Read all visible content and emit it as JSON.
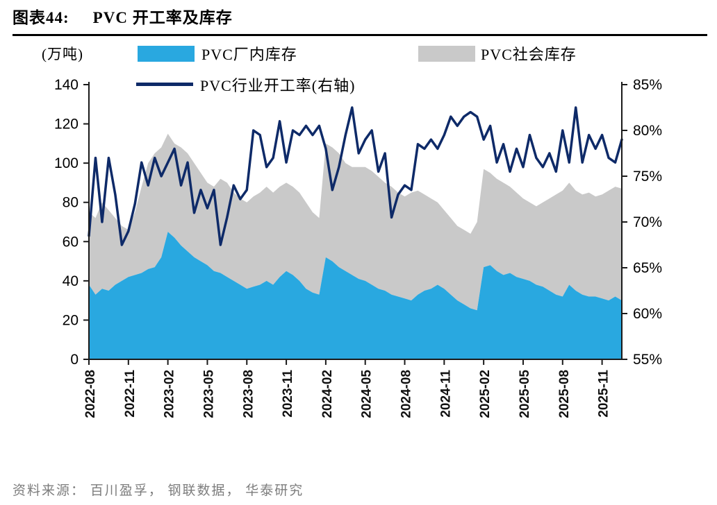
{
  "header": {
    "figure_label": "图表44:",
    "title": "PVC 开工率及库存"
  },
  "legend": {
    "unit": "(万吨)",
    "items": [
      {
        "label": "PVC厂内库存",
        "color": "#29A8E0",
        "type": "area"
      },
      {
        "label": "PVC社会库存",
        "color": "#C9C9C9",
        "type": "area"
      },
      {
        "label": "PVC行业开工率(右轴)",
        "color": "#0E2A68",
        "type": "line"
      }
    ]
  },
  "source": "资料来源： 百川盈孚， 钢联数据， 华泰研究",
  "chart_data": {
    "type": "area+line",
    "title": "PVC 开工率及库存",
    "stacking": "PVC厂内库存 and PVC社会库存 are stacked areas on left axis; operating rate line uses right axis",
    "left_axis": {
      "unit": "万吨",
      "min": 0,
      "max": 140,
      "ticks": [
        0,
        20,
        40,
        60,
        80,
        100,
        120,
        140
      ]
    },
    "right_axis": {
      "min": 55,
      "max": 85,
      "tick_labels": [
        "55%",
        "60%",
        "65%",
        "70%",
        "75%",
        "80%",
        "85%"
      ]
    },
    "x_tick_labels": [
      "2022-08",
      "2022-11",
      "2023-02",
      "2023-05",
      "2023-08",
      "2023-11",
      "2024-02",
      "2024-05",
      "2024-08",
      "2024-11",
      "2025-02",
      "2025-05",
      "2025-08",
      "2025-11"
    ],
    "x_tick_indices": [
      0,
      6,
      12,
      18,
      24,
      30,
      36,
      42,
      48,
      54,
      60,
      66,
      72,
      78
    ],
    "x_note": "82 semimonthly points from 2022-08 to 2025-12",
    "series": [
      {
        "name": "PVC厂内库存",
        "type": "area",
        "axis": "left",
        "color": "#29A8E0",
        "values": [
          38,
          33,
          36,
          35,
          38,
          40,
          42,
          43,
          44,
          46,
          47,
          52,
          65,
          62,
          58,
          55,
          52,
          50,
          48,
          45,
          44,
          42,
          40,
          38,
          36,
          37,
          38,
          40,
          38,
          42,
          45,
          43,
          40,
          36,
          34,
          33,
          52,
          50,
          47,
          45,
          43,
          41,
          40,
          38,
          36,
          35,
          33,
          32,
          31,
          30,
          33,
          35,
          36,
          38,
          36,
          33,
          30,
          28,
          26,
          25,
          47,
          48,
          45,
          43,
          44,
          42,
          41,
          40,
          38,
          37,
          35,
          33,
          32,
          38,
          35,
          33,
          32,
          32,
          31,
          30,
          32,
          30
        ]
      },
      {
        "name": "PVC社会库存",
        "type": "area-stacked",
        "axis": "left",
        "color": "#C9C9C9",
        "values": [
          37,
          39,
          44,
          41,
          34,
          28,
          24,
          32,
          44,
          54,
          58,
          56,
          50,
          48,
          50,
          50,
          48,
          45,
          42,
          43,
          48,
          48,
          45,
          44,
          44,
          46,
          47,
          48,
          47,
          46,
          45,
          45,
          45,
          44,
          41,
          39,
          58,
          58,
          58,
          55,
          55,
          57,
          58,
          58,
          57,
          55,
          55,
          53,
          52,
          55,
          53,
          49,
          46,
          42,
          40,
          39,
          38,
          38,
          38,
          45,
          50,
          47,
          47,
          47,
          44,
          43,
          41,
          40,
          40,
          43,
          47,
          51,
          54,
          52,
          51,
          51,
          53,
          51,
          53,
          56,
          56,
          57
        ]
      },
      {
        "name": "PVC行业开工率(右轴)",
        "type": "line",
        "axis": "right",
        "color": "#0E2A68",
        "values": [
          68.5,
          77,
          70,
          77,
          73,
          67.5,
          69,
          72,
          76.5,
          74,
          77,
          75,
          76.5,
          78,
          74,
          76.5,
          71,
          73.5,
          71.5,
          73.5,
          67.5,
          70.5,
          74,
          72.5,
          73.5,
          80,
          79.5,
          76,
          77,
          81,
          76.5,
          80,
          79.5,
          80.5,
          79.5,
          80.5,
          78,
          73.5,
          76,
          79.5,
          82.5,
          77.5,
          79,
          80,
          75.5,
          77.5,
          70.5,
          73,
          74,
          73.5,
          78.5,
          78,
          79,
          78,
          79.5,
          81.5,
          80.5,
          81.5,
          82,
          81.5,
          79,
          80.5,
          76.5,
          78.5,
          75.5,
          78,
          76,
          79.5,
          77,
          76,
          77.5,
          75.5,
          80,
          76.5,
          82.5,
          76.5,
          79.5,
          78,
          79.5,
          77,
          76.5,
          79
        ]
      }
    ]
  }
}
